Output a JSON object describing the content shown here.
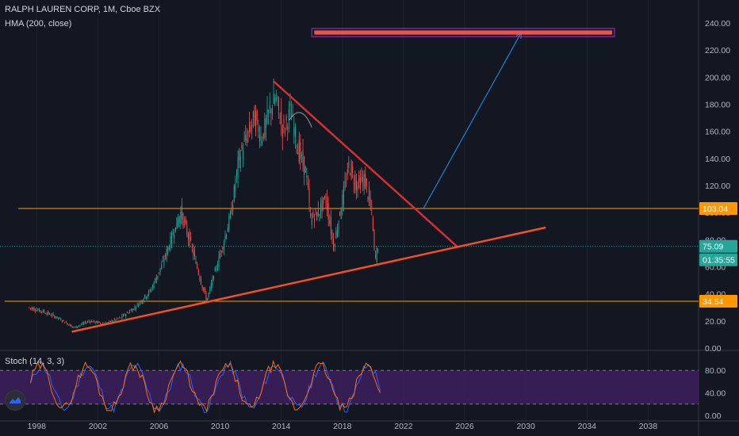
{
  "header": {
    "title": "RALPH LAUREN CORP, 1M, Cboe BZX",
    "indicator": "HMA (200, close)",
    "stoch_label": "Stoch (14, 3, 3)"
  },
  "colors": {
    "background": "#131722",
    "up_candle": "#26a69a",
    "down_candle": "#ef5350",
    "resistance_line": "#d32f2f",
    "support_line": "#f4511e",
    "level_line": "#ff9800",
    "projection_arrow": "#2196f3",
    "price_line": "#26a69a",
    "stoch_band": "#3d1f5c",
    "stoch_k": "#2962ff",
    "stoch_d": "#ff6d00",
    "target_box_border": "#9c27b0",
    "target_box_fill": "#ef5350"
  },
  "price_tags": {
    "level_high": "103.04",
    "last_price": "75.09",
    "countdown": "01:35:55",
    "level_low": "34.54"
  },
  "chart_data": {
    "type": "candlestick",
    "title": "RALPH LAUREN CORP, 1M, Cboe BZX",
    "x_axis": {
      "ticks": [
        "1998",
        "2002",
        "2006",
        "2010",
        "2014",
        "2018",
        "2022",
        "2026",
        "2030",
        "2034",
        "2038"
      ],
      "range": [
        1995.6,
        2041.3
      ]
    },
    "y_axis": {
      "ticks": [
        "0.00",
        "20.00",
        "40.00",
        "60.00",
        "80.00",
        "100.00",
        "120.00",
        "140.00",
        "160.00",
        "180.00",
        "200.00",
        "220.00",
        "240.00"
      ],
      "range": [
        0,
        250
      ]
    },
    "price_path": [
      [
        1997.5,
        30
      ],
      [
        1998.5,
        27
      ],
      [
        1999.5,
        22
      ],
      [
        2000.5,
        15
      ],
      [
        2001.5,
        20
      ],
      [
        2002.5,
        18
      ],
      [
        2003.5,
        22
      ],
      [
        2004.5,
        30
      ],
      [
        2005.5,
        42
      ],
      [
        2006.3,
        62
      ],
      [
        2007.0,
        85
      ],
      [
        2007.5,
        100
      ],
      [
        2008.2,
        75
      ],
      [
        2008.8,
        50
      ],
      [
        2009.2,
        35
      ],
      [
        2009.7,
        55
      ],
      [
        2010.3,
        78
      ],
      [
        2010.8,
        100
      ],
      [
        2011.3,
        140
      ],
      [
        2011.8,
        155
      ],
      [
        2012.3,
        170
      ],
      [
        2012.8,
        155
      ],
      [
        2013.3,
        175
      ],
      [
        2013.7,
        185
      ],
      [
        2014.2,
        160
      ],
      [
        2014.7,
        175
      ],
      [
        2015.2,
        145
      ],
      [
        2015.7,
        130
      ],
      [
        2016.0,
        95
      ],
      [
        2016.5,
        100
      ],
      [
        2017.0,
        110
      ],
      [
        2017.5,
        75
      ],
      [
        2018.0,
        105
      ],
      [
        2018.5,
        135
      ],
      [
        2019.0,
        120
      ],
      [
        2019.5,
        125
      ],
      [
        2020.0,
        100
      ],
      [
        2020.2,
        65
      ],
      [
        2020.4,
        75.09
      ]
    ],
    "levels": [
      {
        "name": "upper horizontal level",
        "price": 103.04
      },
      {
        "name": "lower horizontal level",
        "price": 34.54
      },
      {
        "name": "last price",
        "price": 75.09
      }
    ],
    "trendlines": [
      {
        "name": "descending resistance",
        "from": [
          2013.5,
          197
        ],
        "to": [
          2025.5,
          75
        ]
      },
      {
        "name": "ascending support",
        "from": [
          2000.3,
          12
        ],
        "to": [
          2031.3,
          89
        ]
      }
    ],
    "projection_arrow": {
      "from": [
        2023.3,
        103
      ],
      "to": [
        2029.7,
        233
      ]
    },
    "target_box": {
      "x": [
        2016.0,
        2035.8
      ],
      "y": [
        230,
        236
      ]
    },
    "hma_curve": [
      [
        2014.5,
        168
      ],
      [
        2015.3,
        172
      ],
      [
        2016.0,
        163
      ]
    ],
    "stochastic": {
      "label": "Stoch (14, 3, 3)",
      "ticks": [
        "0.00",
        "40.00",
        "80.00"
      ],
      "range": [
        0,
        100
      ],
      "bands": [
        20,
        80
      ]
    }
  }
}
